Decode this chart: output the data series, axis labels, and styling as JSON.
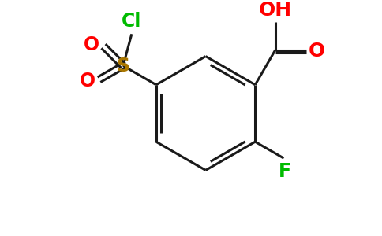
{
  "bg_color": "#ffffff",
  "bond_color": "#1a1a1a",
  "label_Cl": "Cl",
  "label_Cl_color": "#00bb00",
  "label_S": "S",
  "label_S_color": "#aa7700",
  "label_O": "O",
  "label_O_color": "#ff0000",
  "label_OH": "OH",
  "label_OH_color": "#ff0000",
  "label_F": "F",
  "label_F_color": "#00bb00",
  "figsize": [
    4.84,
    3.0
  ],
  "dpi": 100,
  "bond_lw": 2.2,
  "inner_lw": 2.0,
  "font_size": 16
}
